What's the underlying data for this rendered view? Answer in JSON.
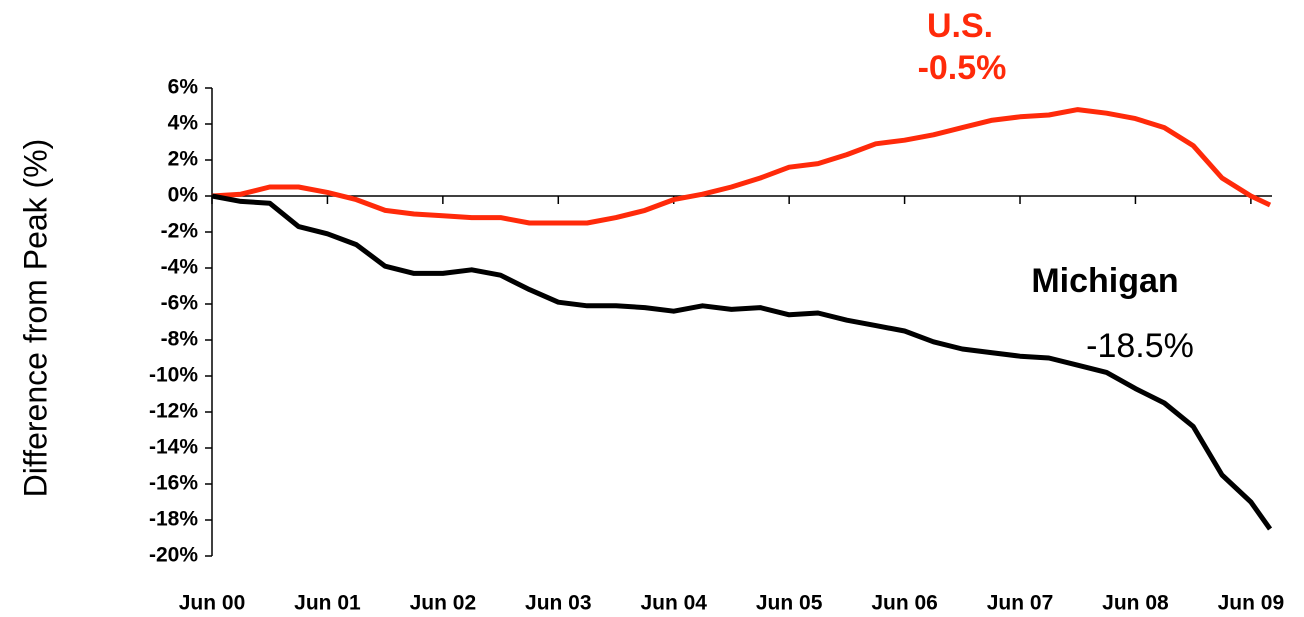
{
  "chart_data": {
    "type": "line",
    "y_label": "Difference from Peak (%)",
    "annotations": [
      "U.S.",
      "-0.5%",
      "Michigan",
      "-18.5%"
    ],
    "x": [
      2000.417,
      2000.667,
      2000.917,
      2001.167,
      2001.417,
      2001.667,
      2001.917,
      2002.167,
      2002.417,
      2002.667,
      2002.917,
      2003.167,
      2003.417,
      2003.667,
      2003.917,
      2004.167,
      2004.417,
      2004.667,
      2004.917,
      2005.167,
      2005.417,
      2005.667,
      2005.917,
      2006.167,
      2006.417,
      2006.667,
      2006.917,
      2007.167,
      2007.417,
      2007.667,
      2007.917,
      2008.167,
      2008.417,
      2008.667,
      2008.917,
      2009.167,
      2009.417,
      2009.583
    ],
    "series": [
      {
        "name": "U.S.",
        "color": "#ff2a0a",
        "values": [
          0,
          0.1,
          0.5,
          0.5,
          0.2,
          -0.2,
          -0.8,
          -1.0,
          -1.1,
          -1.2,
          -1.2,
          -1.5,
          -1.5,
          -1.5,
          -1.2,
          -0.8,
          -0.2,
          0.1,
          0.5,
          1.0,
          1.6,
          1.8,
          2.3,
          2.9,
          3.1,
          3.4,
          3.8,
          4.2,
          4.4,
          4.5,
          4.8,
          4.6,
          4.3,
          3.8,
          2.8,
          1.0,
          0.0,
          -0.5
        ]
      },
      {
        "name": "Michigan",
        "color": "#000000",
        "values": [
          0,
          -0.3,
          -0.4,
          -1.7,
          -2.1,
          -2.7,
          -3.9,
          -4.3,
          -4.3,
          -4.1,
          -4.4,
          -5.2,
          -5.9,
          -6.1,
          -6.1,
          -6.2,
          -6.4,
          -6.1,
          -6.3,
          -6.2,
          -6.6,
          -6.5,
          -6.9,
          -7.2,
          -7.5,
          -8.1,
          -8.5,
          -8.7,
          -8.9,
          -9.0,
          -9.4,
          -9.8,
          -10.7,
          -11.5,
          -12.8,
          -15.5,
          -17.0,
          -18.5
        ]
      }
    ],
    "xlim": [
      2000.417,
      2009.6
    ],
    "xticks": [
      {
        "value": 2000.417,
        "label": "Jun 00"
      },
      {
        "value": 2001.417,
        "label": "Jun 01"
      },
      {
        "value": 2002.417,
        "label": "Jun 02"
      },
      {
        "value": 2003.417,
        "label": "Jun 03"
      },
      {
        "value": 2004.417,
        "label": "Jun 04"
      },
      {
        "value": 2005.417,
        "label": "Jun 05"
      },
      {
        "value": 2006.417,
        "label": "Jun 06"
      },
      {
        "value": 2007.417,
        "label": "Jun 07"
      },
      {
        "value": 2008.417,
        "label": "Jun 08"
      },
      {
        "value": 2009.417,
        "label": "Jun 09"
      }
    ],
    "ylim": [
      -20,
      6
    ],
    "yticks": [
      {
        "value": 6,
        "label": "6%"
      },
      {
        "value": 4,
        "label": "4%"
      },
      {
        "value": 2,
        "label": "2%"
      },
      {
        "value": 0,
        "label": "0%"
      },
      {
        "value": -2,
        "label": "-2%"
      },
      {
        "value": -4,
        "label": "-4%"
      },
      {
        "value": -6,
        "label": "-6%"
      },
      {
        "value": -8,
        "label": "-8%"
      },
      {
        "value": -10,
        "label": "-10%"
      },
      {
        "value": -12,
        "label": "-12%"
      },
      {
        "value": -14,
        "label": "-14%"
      },
      {
        "value": -16,
        "label": "-16%"
      },
      {
        "value": -18,
        "label": "-18%"
      },
      {
        "value": -20,
        "label": "-20%"
      }
    ],
    "grid": false
  }
}
